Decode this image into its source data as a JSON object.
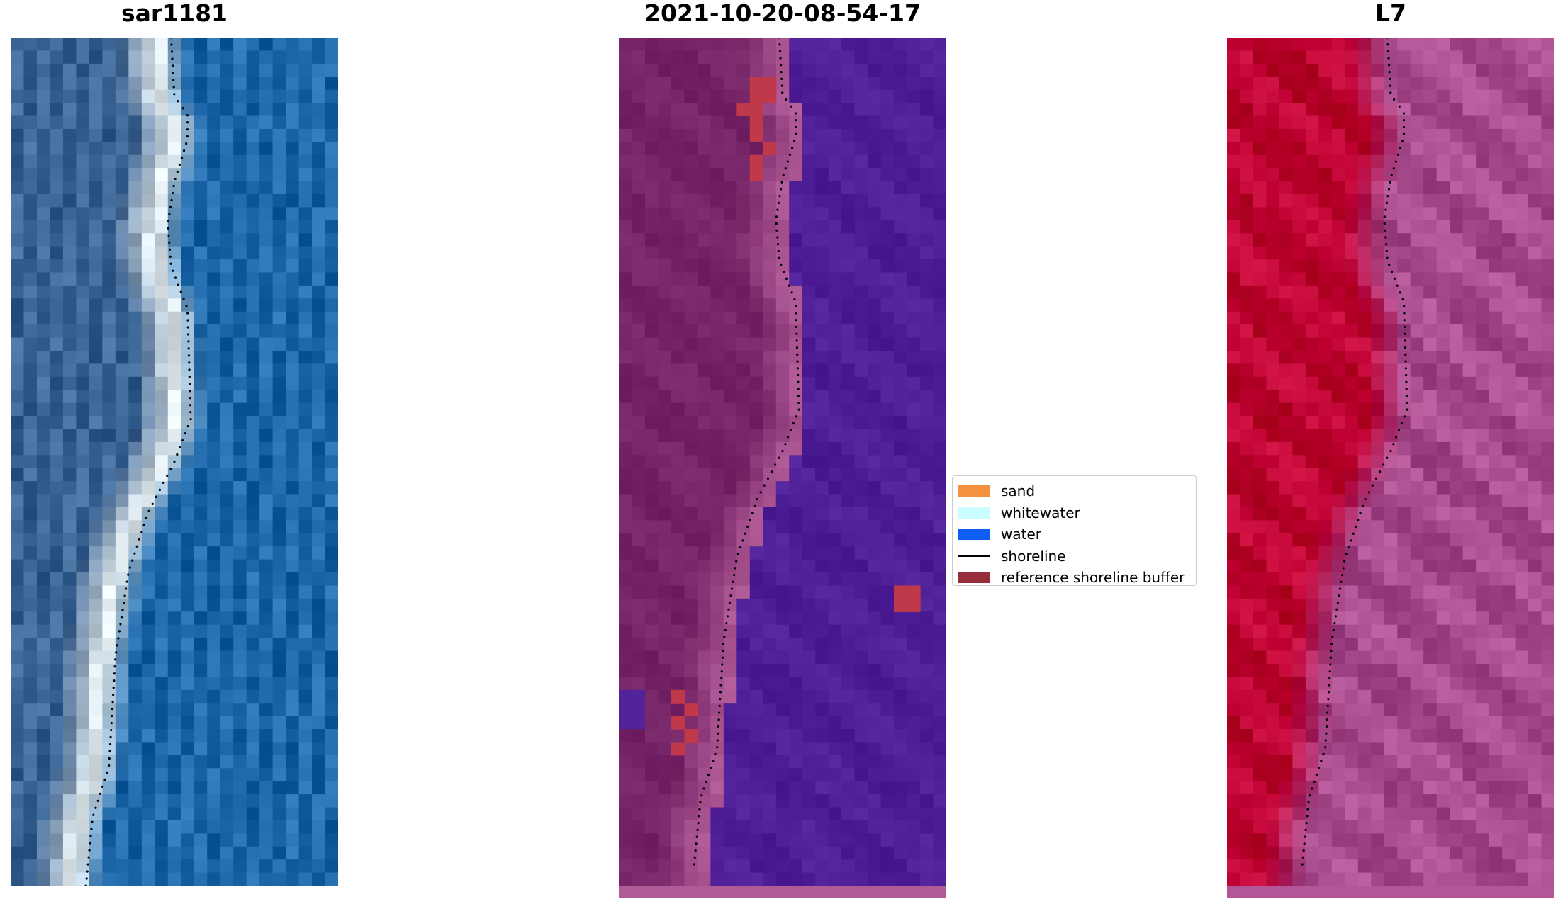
{
  "panels": {
    "rgb": {
      "title": "sar1181"
    },
    "classification": {
      "title": "2021-10-20-08-54-17"
    },
    "index": {
      "title": "L7"
    }
  },
  "legend": {
    "items": [
      {
        "label": "sand",
        "color": "#f6923f",
        "kind": "patch"
      },
      {
        "label": "whitewater",
        "color": "#c9fdff",
        "kind": "patch"
      },
      {
        "label": "water",
        "color": "#0e5ef2",
        "kind": "patch"
      },
      {
        "label": "shoreline",
        "color": "#000000",
        "kind": "line"
      },
      {
        "label": "reference shoreline buffer",
        "color": "#972d3a",
        "kind": "patch"
      }
    ]
  },
  "colors": {
    "rgb_land": "#4a6f9c",
    "rgb_surf": "#e9f3f7",
    "rgb_water": "#2a74b6",
    "class_land": "#7a2a6c",
    "class_transition": "#b15a98",
    "class_water": "#52239a",
    "class_buffer": "#c0394a",
    "index_land": "#c8093c",
    "index_water": "#b25698",
    "shoreline": "#000000"
  }
}
